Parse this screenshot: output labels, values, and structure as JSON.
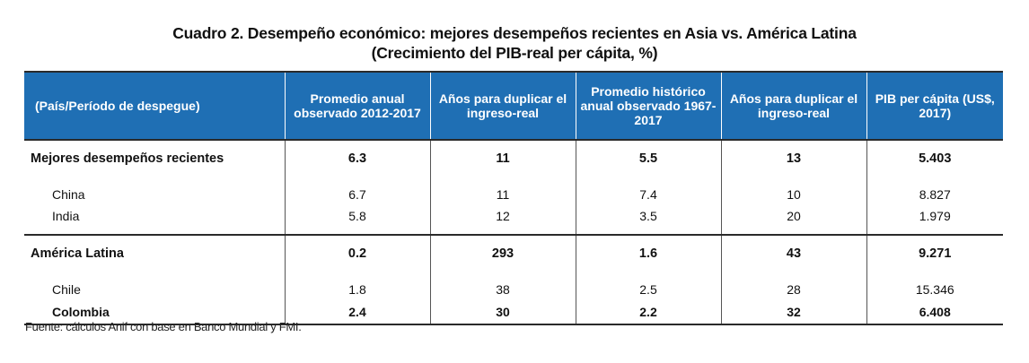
{
  "title": {
    "line1": "Cuadro 2. Desempeño económico: mejores desempeños recientes en Asia vs. América Latina",
    "line2": "(Crecimiento del PIB-real per cápita, %)"
  },
  "table": {
    "headers": [
      "(País/Período de despegue)",
      "Promedio anual observado 2012-2017",
      "Años para duplicar el ingreso-real",
      "Promedio histórico anual observado 1967-2017",
      "Años para duplicar el ingreso-real",
      "PIB per cápita (US$, 2017)"
    ],
    "groups": [
      {
        "name": "Mejores desempeños recientes",
        "values": [
          "6.3",
          "11",
          "5.5",
          "13",
          "5.403"
        ],
        "rows": [
          {
            "name": "China",
            "values": [
              "6.7",
              "11",
              "7.4",
              "10",
              "8.827"
            ]
          },
          {
            "name": "India",
            "values": [
              "5.8",
              "12",
              "3.5",
              "20",
              "1.979"
            ]
          }
        ]
      },
      {
        "name": "América Latina",
        "values": [
          "0.2",
          "293",
          "1.6",
          "43",
          "9.271"
        ],
        "rows": [
          {
            "name": "Chile",
            "values": [
              "1.8",
              "38",
              "2.5",
              "28",
              "15.346"
            ]
          },
          {
            "name": "Colombia",
            "values": [
              "2.4",
              "30",
              "2.2",
              "32",
              "6.408"
            ]
          }
        ]
      }
    ]
  },
  "source": "Fuente: cálculos Anif con base en Banco Mundial y FMI."
}
